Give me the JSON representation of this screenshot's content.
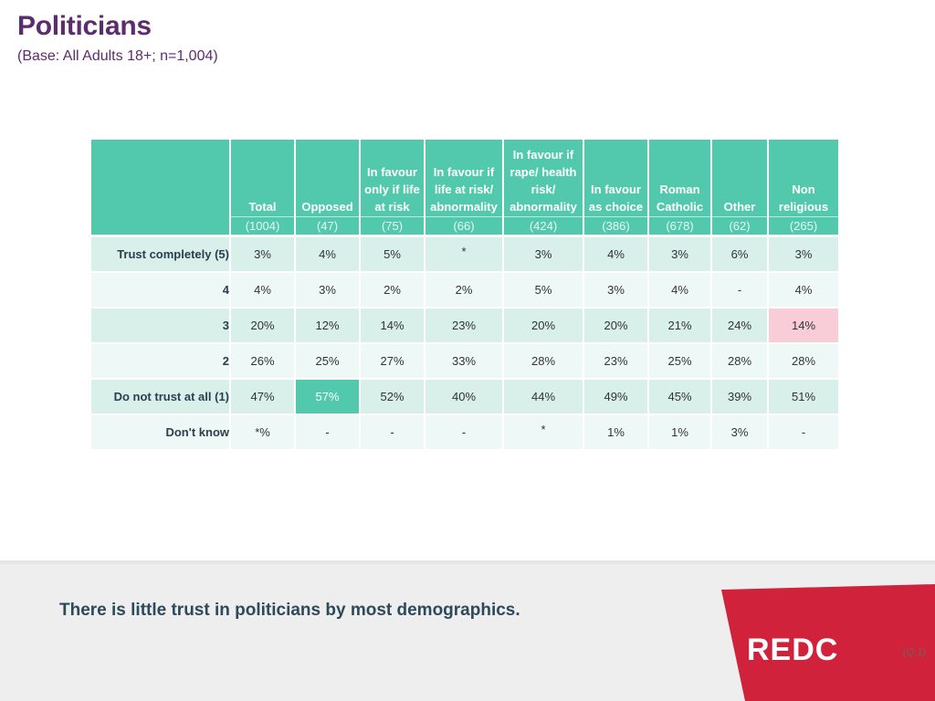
{
  "page": {
    "title": "Politicians",
    "subtitle": "(Base: All Adults 18+; n=1,004)"
  },
  "table": {
    "columns": [
      {
        "label": "Total",
        "base": "(1004)"
      },
      {
        "label": "Opposed",
        "base": "(47)"
      },
      {
        "label": "In favour only if life at risk",
        "base": "(75)"
      },
      {
        "label": "In favour if life at risk/ abnormality",
        "base": "(66)"
      },
      {
        "label": "In favour if rape/ health risk/ abnormality",
        "base": "(424)"
      },
      {
        "label": "In favour as choice",
        "base": "(386)"
      },
      {
        "label": "Roman Catholic",
        "base": "(678)"
      },
      {
        "label": "Other",
        "base": "(62)"
      },
      {
        "label": "Non religious",
        "base": "(265)"
      }
    ],
    "rows": [
      {
        "label": "Trust completely (5)",
        "values": [
          "3%",
          "4%",
          "5%",
          "*",
          "3%",
          "4%",
          "3%",
          "6%",
          "3%"
        ]
      },
      {
        "label": "4",
        "values": [
          "4%",
          "3%",
          "2%",
          "2%",
          "5%",
          "3%",
          "4%",
          "-",
          "4%"
        ]
      },
      {
        "label": "3",
        "values": [
          "20%",
          "12%",
          "14%",
          "23%",
          "20%",
          "20%",
          "21%",
          "24%",
          "14%"
        ]
      },
      {
        "label": "2",
        "values": [
          "26%",
          "25%",
          "27%",
          "33%",
          "28%",
          "23%",
          "25%",
          "28%",
          "28%"
        ]
      },
      {
        "label": "Do not trust at all (1)",
        "values": [
          "47%",
          "57%",
          "52%",
          "40%",
          "44%",
          "49%",
          "45%",
          "39%",
          "51%"
        ]
      },
      {
        "label": "Don't know",
        "values": [
          "*%",
          "-",
          "-",
          "-",
          "*",
          "1%",
          "1%",
          "3%",
          "-"
        ]
      }
    ]
  },
  "footer": {
    "takeaway": "There is little trust in politicians by most demographics.",
    "logo_text": "REDC",
    "question_ref": "(Q.1)"
  },
  "colors": {
    "title": "#5b2d6e",
    "header": "#52c9ad",
    "highlight_high": "#52c9ad",
    "highlight_low": "#f8cdd8",
    "logo_red": "#d0223a"
  }
}
